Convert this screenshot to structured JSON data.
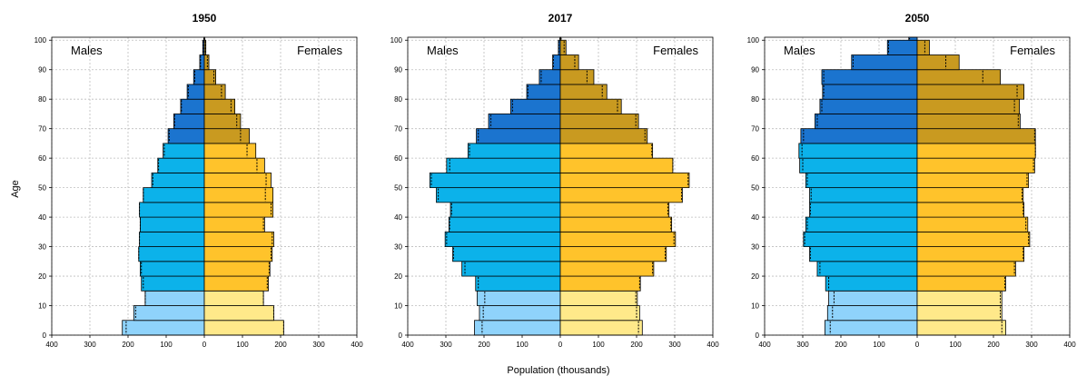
{
  "chart_data": {
    "type": "population-pyramid",
    "xlabel": "Population (thousands)",
    "ylabel": "Age",
    "male_label": "Males",
    "female_label": "Females",
    "age_ticks": [
      "0",
      "10",
      "20",
      "30",
      "40",
      "50",
      "60",
      "70",
      "80",
      "90",
      "100"
    ],
    "x_ticks": [
      "400",
      "300",
      "200",
      "100",
      "0",
      "100",
      "200",
      "300",
      "400"
    ],
    "xlim": [
      -400,
      400
    ],
    "ylim": [
      0,
      101
    ],
    "grid": true,
    "age_groups": [
      "0-4",
      "5-9",
      "10-14",
      "15-19",
      "20-24",
      "25-29",
      "30-34",
      "35-39",
      "40-44",
      "45-49",
      "50-54",
      "55-59",
      "60-64",
      "65-69",
      "70-74",
      "75-79",
      "80-84",
      "85-89",
      "90-94",
      "95-99",
      "100+"
    ],
    "colors": {
      "male_child": "#8fd3fb",
      "male_working": "#0cb2ea",
      "male_old": "#1b74cf",
      "female_child": "#ffe98a",
      "female_working": "#ffc32b",
      "female_old": "#c99a20"
    },
    "panels": [
      {
        "title": "1950",
        "males": [
          215,
          185,
          155,
          165,
          168,
          172,
          170,
          168,
          170,
          160,
          138,
          122,
          108,
          95,
          80,
          62,
          45,
          28,
          12,
          4,
          1
        ],
        "females": [
          208,
          182,
          155,
          168,
          172,
          178,
          182,
          158,
          180,
          180,
          175,
          158,
          135,
          118,
          95,
          80,
          55,
          30,
          12,
          4,
          1
        ],
        "males_ref": [
          205,
          180,
          155,
          160,
          165,
          172,
          170,
          168,
          170,
          160,
          135,
          120,
          105,
          92,
          78,
          60,
          42,
          25,
          10,
          3,
          1
        ],
        "females_ref": [
          208,
          182,
          155,
          165,
          170,
          175,
          178,
          155,
          175,
          160,
          162,
          138,
          112,
          95,
          85,
          70,
          45,
          25,
          8,
          3,
          1
        ]
      },
      {
        "title": "2017",
        "males": [
          225,
          212,
          218,
          222,
          258,
          282,
          302,
          292,
          288,
          325,
          342,
          298,
          242,
          220,
          188,
          130,
          88,
          55,
          20,
          5,
          1
        ],
        "females": [
          215,
          208,
          202,
          210,
          245,
          278,
          302,
          292,
          285,
          320,
          338,
          295,
          242,
          228,
          205,
          160,
          122,
          88,
          48,
          15,
          2
        ],
        "males_ref": [
          205,
          202,
          198,
          215,
          250,
          280,
          298,
          290,
          285,
          320,
          338,
          290,
          238,
          215,
          182,
          125,
          85,
          50,
          18,
          4,
          1
        ],
        "females_ref": [
          205,
          200,
          198,
          208,
          242,
          275,
          298,
          290,
          282,
          318,
          335,
          295,
          240,
          222,
          198,
          150,
          110,
          70,
          38,
          10,
          2
        ]
      },
      {
        "title": "2050",
        "males": [
          242,
          235,
          232,
          240,
          262,
          282,
          298,
          292,
          282,
          282,
          292,
          308,
          310,
          305,
          268,
          255,
          248,
          250,
          172,
          78,
          22
        ],
        "females": [
          232,
          222,
          222,
          232,
          258,
          280,
          295,
          290,
          280,
          278,
          292,
          308,
          310,
          310,
          270,
          268,
          280,
          218,
          110,
          32,
          0
        ],
        "males_ref": [
          228,
          222,
          218,
          232,
          255,
          280,
          295,
          288,
          280,
          278,
          288,
          300,
          302,
          298,
          262,
          250,
          245,
          245,
          168,
          75,
          20
        ],
        "females_ref": [
          222,
          218,
          218,
          230,
          255,
          278,
          292,
          285,
          278,
          275,
          288,
          305,
          310,
          308,
          265,
          255,
          262,
          172,
          75,
          20,
          0
        ]
      }
    ]
  }
}
